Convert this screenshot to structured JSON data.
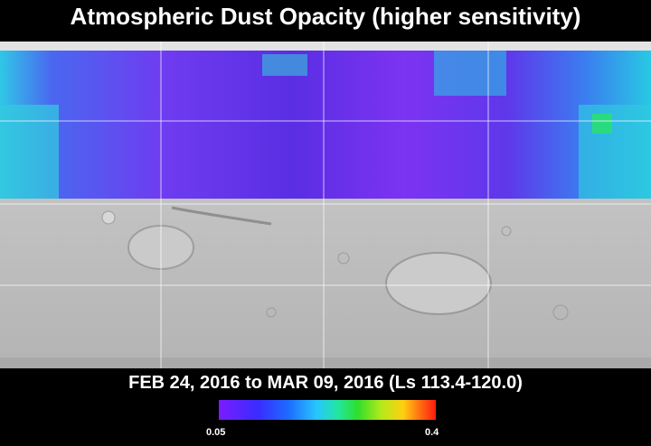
{
  "header": {
    "title": "Atmospheric Dust Opacity (higher sensitivity)"
  },
  "period": {
    "label": "FEB 24, 2016 to MAR 09, 2016 (Ls 113.4-120.0)"
  },
  "legend": {
    "min_label": "0.05",
    "max_label": "0.4",
    "colors": [
      "#7a1cff",
      "#3a2cff",
      "#1e6bff",
      "#27c6ff",
      "#23e6a0",
      "#2edf2c",
      "#b6e91a",
      "#ffcf11",
      "#ff6a12",
      "#ff1b10"
    ]
  }
}
